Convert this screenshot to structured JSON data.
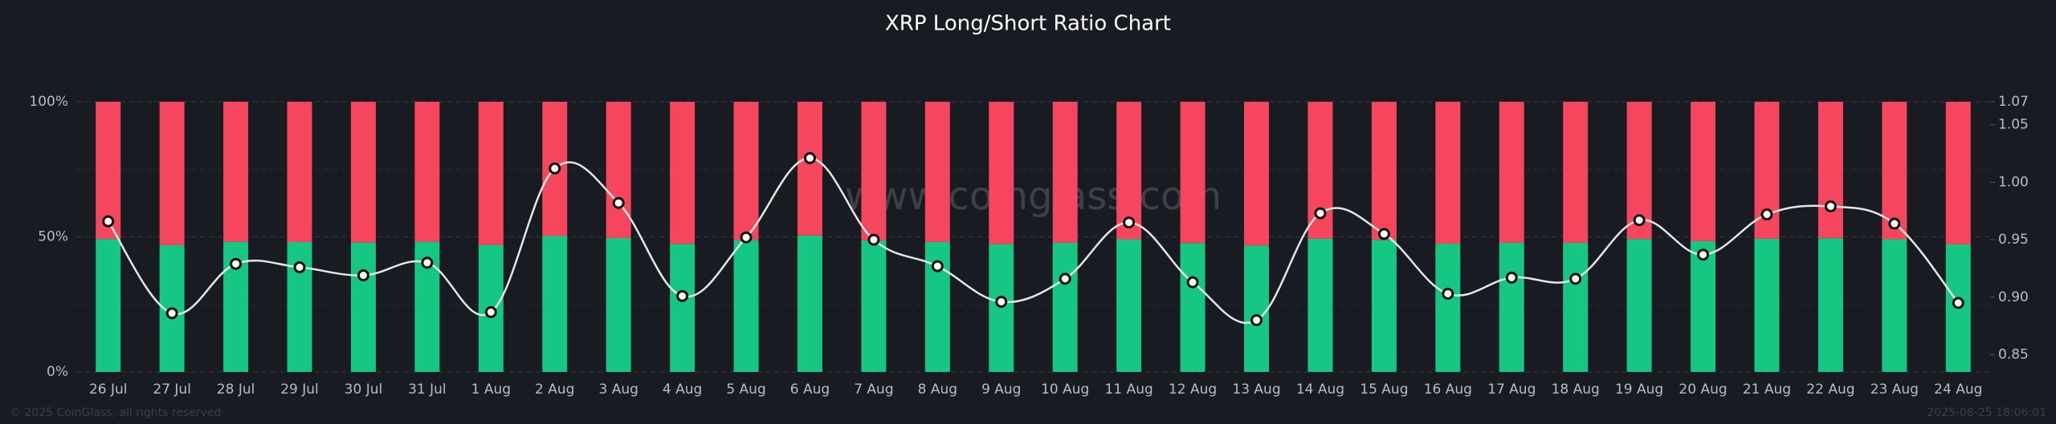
{
  "chart_data": {
    "type": "stacked-bar-line",
    "title": "XRP  Long/Short Ratio Chart",
    "watermark": "www.coinglass.com",
    "footer_left": "© 2025 CoinGlass, all rights reserved",
    "footer_right": "2025-08-25 18:06:01",
    "categories": [
      "26 Jul",
      "27 Jul",
      "28 Jul",
      "29 Jul",
      "30 Jul",
      "31 Jul",
      "1 Aug",
      "2 Aug",
      "3 Aug",
      "4 Aug",
      "5 Aug",
      "6 Aug",
      "7 Aug",
      "8 Aug",
      "9 Aug",
      "10 Aug",
      "11 Aug",
      "12 Aug",
      "13 Aug",
      "14 Aug",
      "15 Aug",
      "16 Aug",
      "17 Aug",
      "18 Aug",
      "19 Aug",
      "20 Aug",
      "21 Aug",
      "22 Aug",
      "23 Aug",
      "24 Aug"
    ],
    "series": [
      {
        "color": "#16c784",
        "values": [
          49.15,
          46.98,
          48.16,
          48.08,
          47.89,
          48.19,
          47.0,
          50.3,
          49.55,
          47.4,
          48.77,
          50.5,
          48.7,
          48.1,
          47.3,
          47.8,
          49.1,
          47.7,
          46.8,
          49.3,
          48.85,
          47.45,
          47.8,
          47.8,
          49.2,
          48.4,
          49.3,
          49.5,
          49.1,
          47.2
        ]
      },
      {
        "color": "#f6465d",
        "values": [
          50.85,
          53.02,
          51.84,
          51.92,
          52.11,
          51.81,
          53.0,
          49.7,
          50.45,
          52.6,
          51.23,
          49.5,
          51.3,
          51.9,
          52.7,
          52.2,
          50.9,
          52.3,
          53.2,
          50.7,
          51.15,
          52.55,
          52.2,
          52.2,
          50.8,
          51.6,
          50.7,
          50.5,
          50.9,
          52.8
        ]
      },
      {
        "color": "#e6e6e6",
        "axis": "y2",
        "values": [
          0.966,
          0.886,
          0.929,
          0.926,
          0.919,
          0.93,
          0.887,
          1.012,
          0.982,
          0.901,
          0.952,
          1.021,
          0.95,
          0.927,
          0.896,
          0.916,
          0.965,
          0.913,
          0.88,
          0.973,
          0.955,
          0.903,
          0.917,
          0.916,
          0.967,
          0.937,
          0.972,
          0.979,
          0.964,
          0.895
        ]
      }
    ],
    "ylim": [
      0,
      100
    ],
    "yticks": [
      {
        "value": 0,
        "label": "0%"
      },
      {
        "value": 50,
        "label": "50%"
      },
      {
        "value": 100,
        "label": "100%"
      }
    ],
    "y2lim": [
      0.835,
      1.07
    ],
    "y2ticks": [
      0.85,
      {
        "value": 0.9,
        "label": "0.90"
      },
      0.95,
      {
        "value": 1.0,
        "label": "1.00"
      },
      1.05,
      1.07
    ],
    "grid": true
  }
}
